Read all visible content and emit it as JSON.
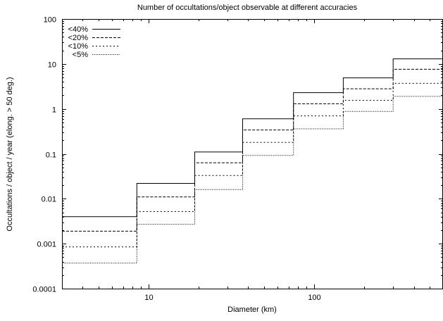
{
  "chart_data": {
    "type": "line",
    "step": true,
    "title": "Number of occultations/object observable at different accuracies",
    "xlabel": "Diameter (km)",
    "ylabel": "Occultations / object / year (elong. > 50 deg.)",
    "xscale": "log",
    "yscale": "log",
    "xlim": [
      3,
      600
    ],
    "ylim": [
      0.0001,
      100
    ],
    "xticks": [
      10,
      100
    ],
    "xtick_labels": [
      "10",
      "100"
    ],
    "yticks": [
      0.0001,
      0.001,
      0.01,
      0.1,
      1,
      10,
      100
    ],
    "ytick_labels": [
      "0.0001",
      "0.001",
      "0.01",
      "0.1",
      "1",
      "10",
      "100"
    ],
    "grid": false,
    "legend_position": "top-left",
    "x_edges": [
      3,
      8.5,
      19,
      37,
      75,
      150,
      300,
      600
    ],
    "series": [
      {
        "name": "<40%",
        "style": "solid",
        "values": [
          0.004,
          0.022,
          0.11,
          0.6,
          2.3,
          4.9,
          13
        ]
      },
      {
        "name": "<20%",
        "style": "dashed",
        "values": [
          0.0019,
          0.011,
          0.063,
          0.34,
          1.3,
          2.8,
          7.6
        ]
      },
      {
        "name": "<10%",
        "style": "dense-dotted",
        "values": [
          0.00085,
          0.0052,
          0.033,
          0.18,
          0.7,
          1.55,
          3.7
        ]
      },
      {
        "name": "<5%",
        "style": "dotted",
        "values": [
          0.00037,
          0.0027,
          0.016,
          0.092,
          0.36,
          0.88,
          1.9
        ]
      }
    ]
  }
}
